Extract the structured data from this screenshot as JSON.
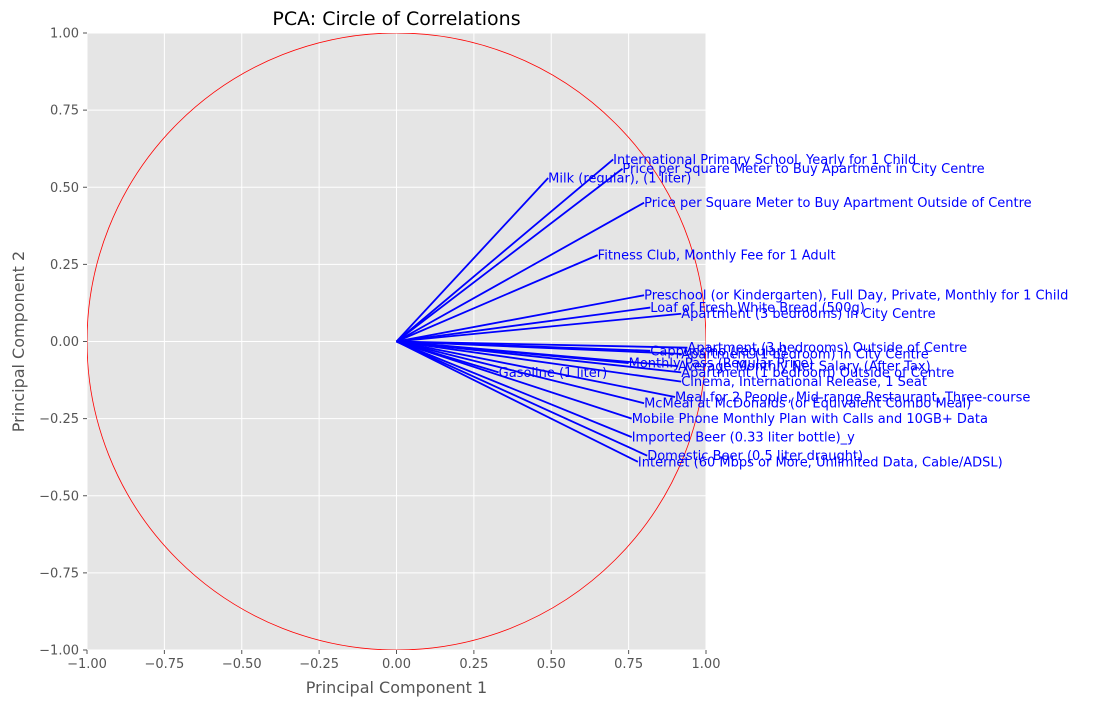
{
  "chart_data": {
    "type": "scatter",
    "title": "PCA: Circle of Correlations",
    "xlabel": "Principal Component 1",
    "ylabel": "Principal Component 2",
    "xlim": [
      -1.0,
      1.0
    ],
    "ylim": [
      -1.0,
      1.0
    ],
    "xticks": [
      "−1.00",
      "−0.75",
      "−0.50",
      "−0.25",
      "0.00",
      "0.25",
      "0.50",
      "0.75",
      "1.00"
    ],
    "yticks": [
      "−1.00",
      "−0.75",
      "−0.50",
      "−0.25",
      "0.00",
      "0.25",
      "0.50",
      "0.75",
      "1.00"
    ],
    "xtick_values": [
      -1.0,
      -0.75,
      -0.5,
      -0.25,
      0.0,
      0.25,
      0.5,
      0.75,
      1.0
    ],
    "ytick_values": [
      -1.0,
      -0.75,
      -0.5,
      -0.25,
      0.0,
      0.25,
      0.5,
      0.75,
      1.0
    ],
    "grid": true,
    "background_color": "#e5e5e5",
    "grid_color": "#ffffff",
    "circle_color": "#ff0000",
    "arrow_color": "#0000ff",
    "label_color": "#0000ff",
    "unit_circle_radius": 1.0,
    "vectors": [
      {
        "label": "International Primary School, Yearly for 1 Child",
        "x": 0.7,
        "y": 0.59
      },
      {
        "label": "Price per Square Meter to Buy Apartment in City Centre",
        "x": 0.73,
        "y": 0.56
      },
      {
        "label": "Milk (regular), (1 liter)",
        "x": 0.49,
        "y": 0.53
      },
      {
        "label": "Price per Square Meter to Buy Apartment Outside of Centre",
        "x": 0.8,
        "y": 0.45
      },
      {
        "label": "Fitness Club, Monthly Fee for 1 Adult",
        "x": 0.65,
        "y": 0.28
      },
      {
        "label": "Preschool (or Kindergarten), Full Day, Private, Monthly for 1 Child",
        "x": 0.8,
        "y": 0.15
      },
      {
        "label": "Loaf of Fresh White Bread (500g)",
        "x": 0.82,
        "y": 0.11
      },
      {
        "label": "Apartment (3 bedrooms) in City Centre",
        "x": 0.92,
        "y": 0.09
      },
      {
        "label": "Apartment (3 bedrooms) Outside of Centre",
        "x": 0.94,
        "y": -0.02
      },
      {
        "label": "Cappuccino (regular)",
        "x": 0.82,
        "y": -0.03
      },
      {
        "label": "Apartment (1 bedroom) in City Centre",
        "x": 0.92,
        "y": -0.04
      },
      {
        "label": "Monthly Pass (Regular Price)",
        "x": 0.75,
        "y": -0.07
      },
      {
        "label": "Average Monthly Net Salary (After Tax)",
        "x": 0.91,
        "y": -0.08
      },
      {
        "label": "Apartment (1 bedroom) Outside of Centre",
        "x": 0.92,
        "y": -0.1
      },
      {
        "label": "Gasoline (1 liter)",
        "x": 0.33,
        "y": -0.1
      },
      {
        "label": "Cinema, International Release, 1 Seat",
        "x": 0.92,
        "y": -0.13
      },
      {
        "label": "Meal for 2 People, Mid-range Restaurant, Three-course",
        "x": 0.9,
        "y": -0.18
      },
      {
        "label": "McMeal at McDonalds (or Equivalent Combo Meal)",
        "x": 0.8,
        "y": -0.2
      },
      {
        "label": "Mobile Phone Monthly Plan with Calls and 10GB+ Data",
        "x": 0.76,
        "y": -0.25
      },
      {
        "label": "Imported Beer (0.33 liter bottle)_y",
        "x": 0.76,
        "y": -0.31
      },
      {
        "label": "Domestic Beer (0.5 liter draught)",
        "x": 0.81,
        "y": -0.37
      },
      {
        "label": "Internet (60 Mbps or More, Unlimited Data, Cable/ADSL)",
        "x": 0.78,
        "y": -0.39
      }
    ]
  }
}
